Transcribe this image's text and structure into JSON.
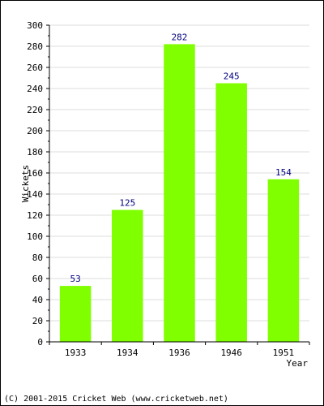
{
  "chart_data": {
    "type": "bar",
    "categories": [
      "1933",
      "1934",
      "1936",
      "1946",
      "1951"
    ],
    "values": [
      53,
      125,
      282,
      245,
      154
    ],
    "title": "",
    "xlabel": "Year",
    "ylabel": "Wickets",
    "ylim": [
      0,
      300
    ],
    "ytick_step": 20,
    "ytick_labels": [
      "0",
      "20",
      "40",
      "60",
      "80",
      "100",
      "120",
      "140",
      "160",
      "180",
      "200",
      "220",
      "240",
      "260",
      "280",
      "300"
    ],
    "grid": true,
    "bar_color": "#80ff00",
    "label_color": "#000080"
  },
  "footer": {
    "copyright": "(C) 2001-2015 Cricket Web (www.cricketweb.net)"
  }
}
